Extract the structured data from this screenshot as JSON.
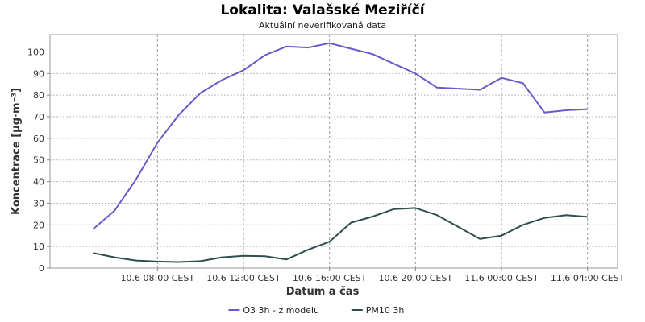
{
  "chart_data": {
    "type": "line",
    "title": "Lokalita: Valašské Meziříčí",
    "subtitle": "Aktuální neverifikovaná data",
    "xlabel": "Datum a čas",
    "ylabel": "Koncentrace [µg·m⁻³]",
    "ylim": [
      0,
      108
    ],
    "yticks": [
      0,
      10,
      20,
      30,
      40,
      50,
      60,
      70,
      80,
      90,
      100
    ],
    "xlim": [
      3.0,
      29.4
    ],
    "xticks": [
      {
        "x": 8,
        "label": "10.6 08:00 CEST"
      },
      {
        "x": 12,
        "label": "10.6 12:00 CEST"
      },
      {
        "x": 16,
        "label": "10.6 16:00 CEST"
      },
      {
        "x": 20,
        "label": "10.6 20:00 CEST"
      },
      {
        "x": 24,
        "label": "11.6 00:00 CEST"
      },
      {
        "x": 28,
        "label": "11.6 04:00 CEST"
      }
    ],
    "grid": true,
    "legend_position": "bottom",
    "x": [
      5,
      6,
      7,
      8,
      9,
      10,
      11,
      12,
      13,
      14,
      15,
      16,
      17,
      18,
      19,
      20,
      21,
      22,
      23,
      24,
      25,
      26,
      27,
      28
    ],
    "series": [
      {
        "name": "O3 3h - z modelu",
        "color": "#6a5acd",
        "values": [
          18,
          26.5,
          41,
          58,
          71,
          81,
          87,
          91.5,
          98.5,
          102.5,
          102,
          104,
          101.5,
          99,
          94.5,
          90,
          83.5,
          83,
          82.5,
          88,
          85.5,
          72,
          73,
          73.5
        ]
      },
      {
        "name": "PM10 3h",
        "color": "#2f4f4f",
        "values": [
          7,
          5,
          3.5,
          3,
          2.8,
          3.2,
          5,
          5.7,
          5.5,
          4,
          8.5,
          12.2,
          21,
          23.8,
          27.3,
          27.8,
          24.5,
          19,
          13.5,
          15,
          20,
          23.2,
          24.5,
          23.7
        ]
      }
    ]
  }
}
